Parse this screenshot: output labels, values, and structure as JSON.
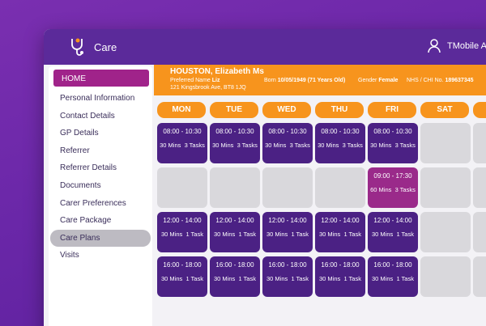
{
  "app": {
    "name": "Care",
    "user": "TMobile Adm"
  },
  "sidebar": {
    "home": "HOME",
    "items": [
      "Personal Information",
      "Contact Details",
      "GP Details",
      "Referrer",
      "Referrer Details",
      "Documents",
      "Carer Preferences",
      "Care Package",
      "Care Plans",
      "Visits"
    ],
    "active": "Care Plans"
  },
  "patient": {
    "name": "HOUSTON, Elizabeth Ms",
    "preferred_label": "Preferred Name",
    "preferred_value": "Liz",
    "born_label": "Born",
    "born_value": "10/05/1949 (71 Years Old)",
    "gender_label": "Gender",
    "gender_value": "Female",
    "nhs_label": "NHS / CHI No.",
    "nhs_value": "189637345",
    "address": "121 Kingsbrook Ave, BT8 1JQ"
  },
  "days": [
    "MON",
    "TUE",
    "WED",
    "THU",
    "FRI",
    "SAT"
  ],
  "schedule": {
    "row1": {
      "time": "08:00 - 10:30",
      "mins": "30 Mins",
      "tasks": "3 Tasks"
    },
    "row2": {
      "time": "09:00 - 17:30",
      "mins": "60 Mins",
      "tasks": "3 Tasks"
    },
    "row3": {
      "time": "12:00 - 14:00",
      "mins": "30 Mins",
      "tasks": "1 Task"
    },
    "row4": {
      "time": "16:00 - 18:00",
      "mins": "30 Mins",
      "tasks": "1 Task"
    }
  },
  "colors": {
    "purple": "#4b2184",
    "orange": "#f7941d",
    "magenta": "#9a2a8a"
  }
}
